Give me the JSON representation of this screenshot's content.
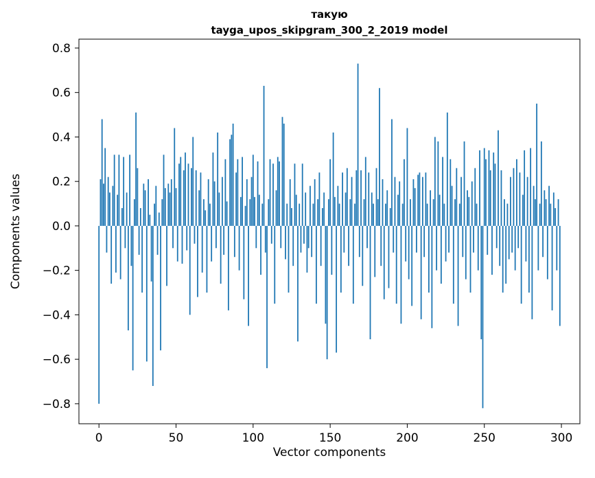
{
  "figure": {
    "title_line1": "такую",
    "title_line2": "tayga_upos_skipgram_300_2_2019 model",
    "xlabel": "Vector components",
    "ylabel": "Components values"
  },
  "chart_data": {
    "type": "bar",
    "title": "такую — tayga_upos_skipgram_300_2_2019 model",
    "xlabel": "Vector components",
    "ylabel": "Components values",
    "bar_color": "#1f77b4",
    "grid": false,
    "legend": "none",
    "xlim": [
      -13,
      312
    ],
    "ylim": [
      -0.89,
      0.84
    ],
    "xticks": [
      0,
      50,
      100,
      150,
      200,
      250,
      300
    ],
    "ytick_values": [
      0.8,
      0.6,
      0.4,
      0.2,
      0.0,
      -0.2,
      -0.4,
      -0.6,
      -0.8
    ],
    "ytick_labels": [
      "0.8",
      "0.6",
      "0.4",
      "0.2",
      "0.0",
      "−0.2",
      "−0.4",
      "−0.6",
      "−0.8"
    ],
    "n_components": 300,
    "values": [
      -0.8,
      0.21,
      0.48,
      0.19,
      0.35,
      -0.12,
      0.22,
      0.15,
      -0.26,
      0.18,
      0.32,
      -0.21,
      0.14,
      0.32,
      -0.24,
      0.08,
      0.31,
      -0.1,
      0.15,
      -0.47,
      0.32,
      -0.18,
      -0.65,
      0.12,
      0.51,
      0.26,
      -0.13,
      0.08,
      -0.3,
      0.19,
      0.16,
      -0.61,
      0.21,
      0.05,
      -0.25,
      -0.72,
      0.1,
      0.18,
      -0.13,
      0.06,
      -0.56,
      0.12,
      0.32,
      0.17,
      -0.27,
      0.19,
      0.15,
      0.21,
      -0.1,
      0.44,
      0.17,
      -0.16,
      0.28,
      0.31,
      -0.17,
      0.25,
      0.33,
      -0.11,
      0.28,
      -0.4,
      0.26,
      0.4,
      -0.08,
      0.25,
      -0.32,
      0.16,
      0.24,
      -0.21,
      0.12,
      0.07,
      -0.3,
      0.21,
      0.1,
      -0.16,
      0.33,
      0.2,
      -0.1,
      0.42,
      0.15,
      -0.26,
      0.22,
      -0.13,
      0.3,
      0.11,
      -0.38,
      0.39,
      0.41,
      0.46,
      -0.14,
      0.24,
      0.3,
      -0.2,
      0.13,
      0.31,
      -0.33,
      0.09,
      0.21,
      -0.45,
      0.12,
      0.22,
      0.32,
      0.13,
      -0.1,
      0.29,
      0.14,
      -0.22,
      0.1,
      0.63,
      -0.12,
      -0.64,
      0.12,
      0.3,
      -0.08,
      0.28,
      -0.35,
      0.16,
      0.31,
      0.29,
      -0.1,
      0.49,
      0.46,
      -0.15,
      0.1,
      -0.3,
      0.21,
      0.08,
      -0.18,
      0.28,
      0.14,
      -0.52,
      0.1,
      -0.12,
      0.28,
      -0.08,
      0.15,
      -0.21,
      -0.1,
      0.18,
      -0.14,
      0.1,
      0.21,
      -0.35,
      0.12,
      0.24,
      -0.18,
      0.08,
      0.15,
      -0.44,
      -0.6,
      0.12,
      0.3,
      -0.22,
      0.42,
      0.13,
      -0.57,
      0.18,
      0.1,
      -0.3,
      0.24,
      -0.12,
      0.15,
      0.26,
      -0.18,
      0.12,
      0.22,
      -0.35,
      0.1,
      0.25,
      0.73,
      -0.14,
      0.25,
      -0.27,
      0.12,
      0.31,
      -0.1,
      0.24,
      -0.51,
      0.15,
      0.1,
      -0.23,
      0.26,
      0.12,
      0.62,
      -0.18,
      0.21,
      -0.33,
      0.1,
      0.16,
      -0.28,
      0.08,
      0.48,
      -0.12,
      0.22,
      -0.35,
      0.14,
      0.2,
      -0.44,
      0.1,
      0.3,
      -0.16,
      0.44,
      -0.24,
      0.12,
      -0.36,
      0.21,
      0.17,
      -0.12,
      0.23,
      0.24,
      -0.42,
      0.22,
      -0.14,
      0.24,
      0.1,
      -0.3,
      0.16,
      -0.46,
      0.12,
      0.4,
      -0.2,
      0.38,
      0.14,
      -0.26,
      0.31,
      0.1,
      -0.16,
      0.51,
      -0.12,
      0.3,
      0.18,
      -0.35,
      0.12,
      0.26,
      -0.45,
      0.1,
      0.22,
      -0.14,
      0.38,
      -0.24,
      0.16,
      0.13,
      -0.3,
      0.2,
      -0.12,
      0.26,
      0.1,
      -0.2,
      0.34,
      -0.51,
      -0.82,
      0.35,
      0.3,
      -0.13,
      0.34,
      0.25,
      -0.22,
      0.33,
      0.28,
      -0.1,
      0.43,
      -0.18,
      0.25,
      -0.3,
      0.12,
      -0.26,
      0.1,
      -0.15,
      0.22,
      -0.12,
      0.26,
      -0.2,
      0.3,
      -0.1,
      0.24,
      -0.35,
      0.14,
      0.34,
      -0.16,
      0.22,
      -0.3,
      0.35,
      -0.42,
      0.18,
      0.12,
      0.55,
      -0.2,
      0.1,
      0.38,
      -0.14,
      0.16,
      0.12,
      -0.24,
      0.18,
      0.1,
      -0.38,
      0.15,
      0.08,
      -0.2,
      0.12,
      -0.45
    ]
  }
}
